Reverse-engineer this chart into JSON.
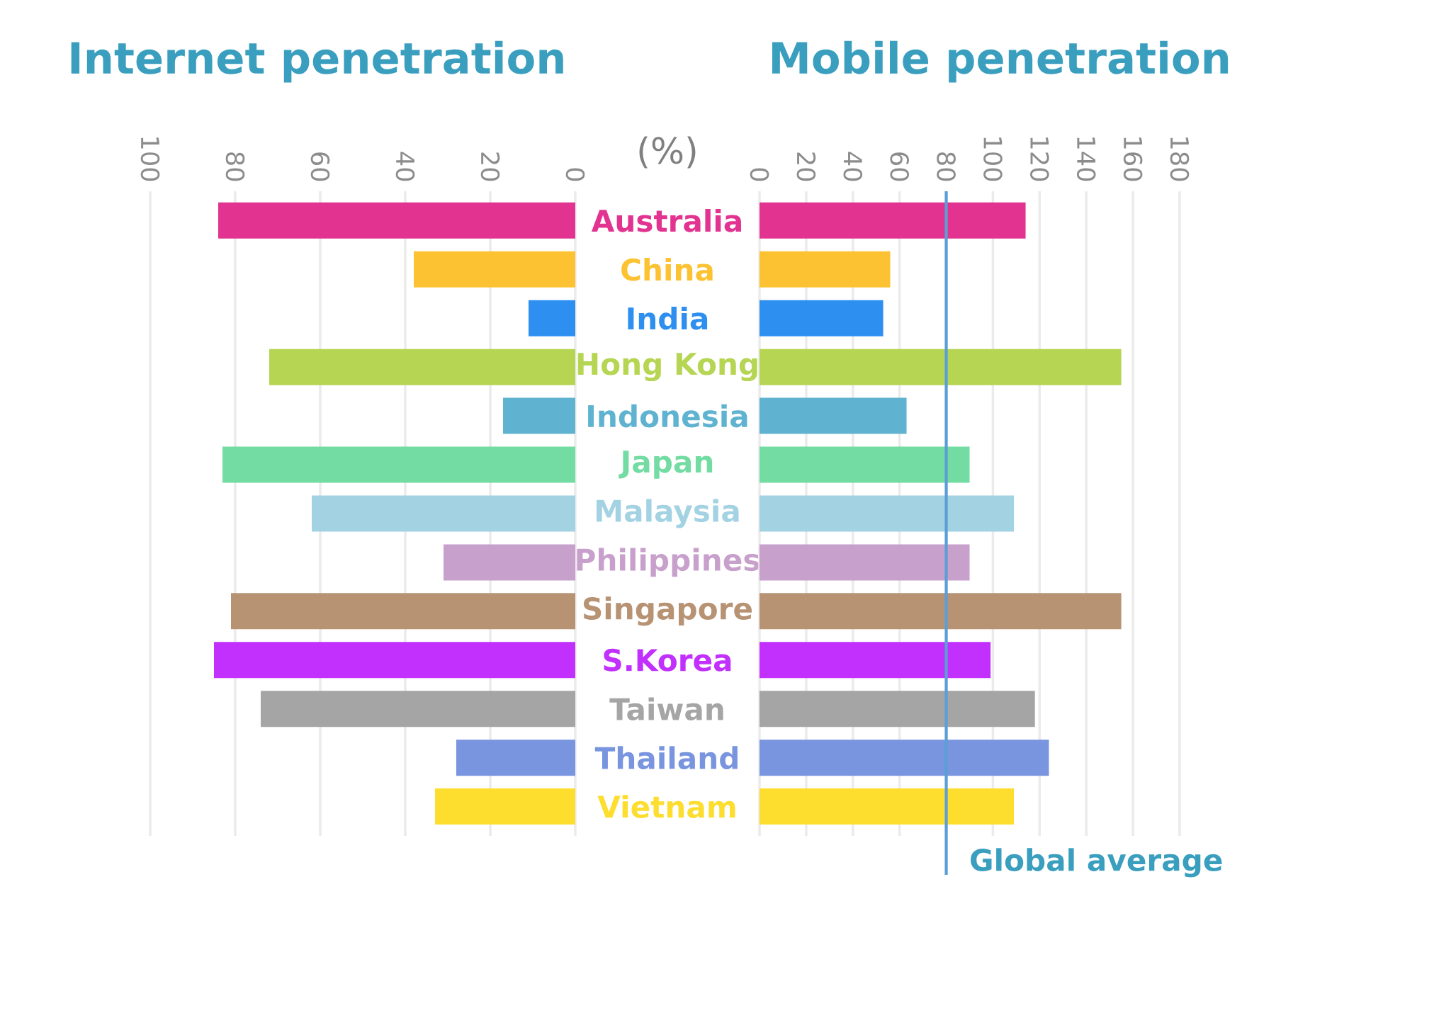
{
  "chart_data": [
    {
      "type": "bar",
      "orientation": "horizontal",
      "title": "Internet penetration",
      "categories": [
        "Australia",
        "China",
        "India",
        "Hong Kong",
        "Indonesia",
        "Japan",
        "Malaysia",
        "Philippines",
        "Singapore",
        "S.Korea",
        "Taiwan",
        "Thailand",
        "Vietnam"
      ],
      "values": [
        84,
        38,
        11,
        72,
        17,
        83,
        62,
        31,
        81,
        85,
        74,
        28,
        33
      ],
      "colors": [
        "#e23391",
        "#fcc232",
        "#2d8ff0",
        "#b5d553",
        "#5fb3d0",
        "#72dca2",
        "#a3d2e3",
        "#c8a0cc",
        "#b79374",
        "#c130fc",
        "#a5a5a5",
        "#7a95df",
        "#fddd2e"
      ],
      "xlim": [
        100,
        0
      ],
      "xticks": [
        0,
        20,
        40,
        60,
        80,
        100
      ],
      "grid": "x",
      "annotations": [
        "(%)"
      ]
    },
    {
      "type": "bar",
      "orientation": "horizontal",
      "title": "Mobile penetration",
      "categories": [
        null,
        null,
        null,
        null,
        null,
        null,
        null,
        null,
        null,
        null,
        null,
        null,
        null
      ],
      "values": [
        114,
        56,
        53,
        155,
        63,
        90,
        109,
        90,
        155,
        99,
        118,
        124,
        109
      ],
      "colors": [
        "#e23391",
        "#fcc232",
        "#2d8ff0",
        "#b5d553",
        "#5fb3d0",
        "#72dca2",
        "#a3d2e3",
        "#c8a0cc",
        "#b79374",
        "#c130fc",
        "#a5a5a5",
        "#7a95df",
        "#fddd2e"
      ],
      "xlim": [
        0,
        180
      ],
      "xticks": [
        0,
        20,
        40,
        60,
        80,
        100,
        120,
        140,
        160,
        180
      ],
      "grid": "x",
      "tick_labels": "x",
      "ref_lines": [
        {
          "axis": "x",
          "value": 80,
          "label": "Global average",
          "color": "#5b9fd6"
        }
      ]
    }
  ]
}
